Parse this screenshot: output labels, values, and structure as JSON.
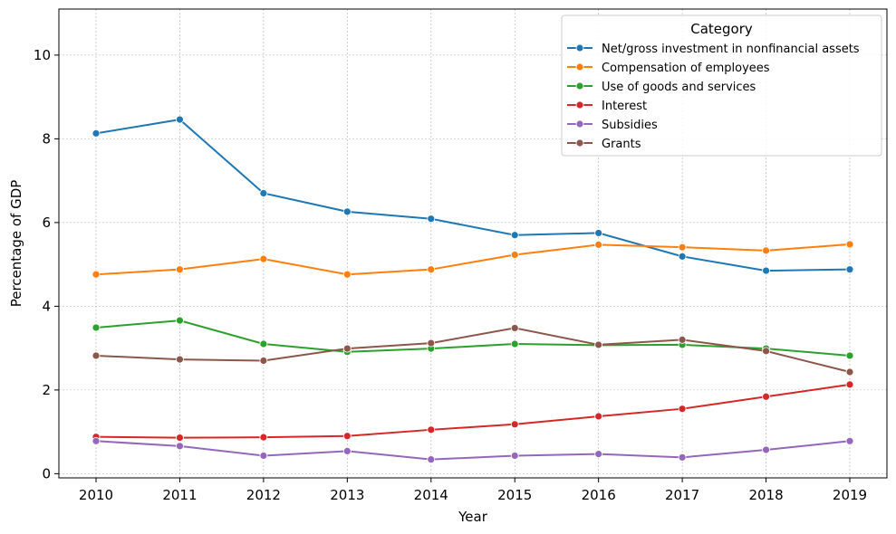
{
  "chart_data": {
    "type": "line",
    "xlabel": "Year",
    "ylabel": "Percentage of GDP",
    "x": [
      "2010",
      "2011",
      "2012",
      "2013",
      "2014",
      "2015",
      "2016",
      "2017",
      "2018",
      "2019"
    ],
    "ylim": [
      -0.1,
      11.1
    ],
    "yticks": [
      "0",
      "2",
      "4",
      "6",
      "8",
      "10"
    ],
    "grid": true,
    "legend_title": "Category",
    "legend_position": "top-right",
    "series": [
      {
        "name": "Net/gross investment in nonfinancial assets",
        "color": "#1f77b4",
        "values": [
          8.13,
          8.46,
          6.7,
          6.26,
          6.09,
          5.7,
          5.75,
          5.19,
          4.85,
          4.88
        ]
      },
      {
        "name": "Compensation of employees",
        "color": "#ff7f0e",
        "values": [
          4.76,
          4.88,
          5.13,
          4.76,
          4.88,
          5.23,
          5.47,
          5.41,
          5.33,
          5.48
        ]
      },
      {
        "name": "Use of goods and services",
        "color": "#2ca02c",
        "values": [
          3.49,
          3.66,
          3.1,
          2.91,
          2.99,
          3.1,
          3.07,
          3.08,
          2.99,
          2.82
        ]
      },
      {
        "name": "Interest",
        "color": "#d62728",
        "values": [
          0.88,
          0.86,
          0.87,
          0.9,
          1.05,
          1.18,
          1.37,
          1.55,
          1.84,
          2.13
        ]
      },
      {
        "name": "Subsidies",
        "color": "#9467bd",
        "values": [
          0.78,
          0.66,
          0.43,
          0.54,
          0.34,
          0.43,
          0.47,
          0.39,
          0.57,
          0.78
        ]
      },
      {
        "name": "Grants",
        "color": "#8c564b",
        "values": [
          2.82,
          2.73,
          2.7,
          2.99,
          3.12,
          3.48,
          3.08,
          3.2,
          2.93,
          2.43
        ]
      }
    ]
  }
}
